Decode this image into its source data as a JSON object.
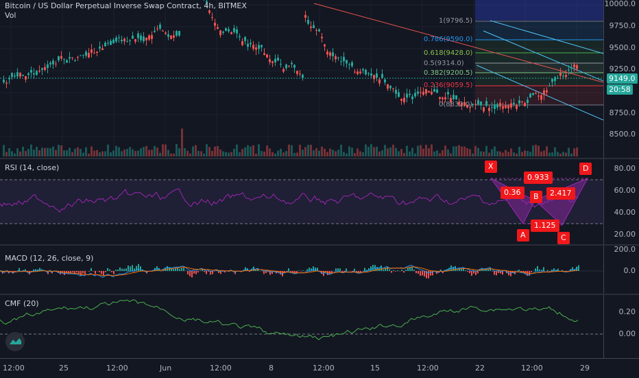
{
  "header": {
    "title": "Bitcoin / US Dollar Perpetual Inverse Swap Contract, 4h, BITMEX",
    "sub": "Vol"
  },
  "price_axis": {
    "ticks": [
      "10000.0",
      "9750.0",
      "9500.0",
      "9250.0",
      "8750.0",
      "8500.0"
    ],
    "last_price": "9149.0",
    "countdown": "20:58"
  },
  "fib": {
    "levels": [
      "1(9796.5)",
      "0.786(9590.0)",
      "0.618(9428.0)",
      "0.5(9314.0)",
      "0.382(9200.5)",
      "0.236(9059.5)",
      "0(8832.0)"
    ],
    "colors": [
      "#787b86",
      "#2196f3",
      "#4caf50",
      "#9598a1",
      "#81c784",
      "#f23645",
      "#787b86"
    ]
  },
  "rsi": {
    "title": "RSI (14, close)",
    "ticks": [
      "80.00",
      "60.00",
      "40.00",
      "20.00"
    ],
    "pattern": {
      "points": [
        "X",
        "A",
        "B",
        "C",
        "D"
      ],
      "ratios": [
        "0.36",
        "0.933",
        "1.125",
        "2.417"
      ]
    }
  },
  "macd": {
    "title": "MACD (12, 26, close, 9)",
    "ticks": [
      "200.0",
      "0.0"
    ]
  },
  "cmf": {
    "title": "CMF (20)",
    "ticks": [
      "0.20",
      "0.00"
    ]
  },
  "time_axis": [
    "12:00",
    "25",
    "12:00",
    "Jun",
    "12:00",
    "8",
    "12:00",
    "15",
    "12:00",
    "22",
    "12:00",
    "29"
  ],
  "colors": {
    "up": "#26a69a",
    "down": "#ef5350",
    "rsi": "#9c27b0",
    "macd": "#2196f3",
    "signal": "#ff6d00",
    "cmf": "#4caf50",
    "harmonic": "#f0181b"
  }
}
